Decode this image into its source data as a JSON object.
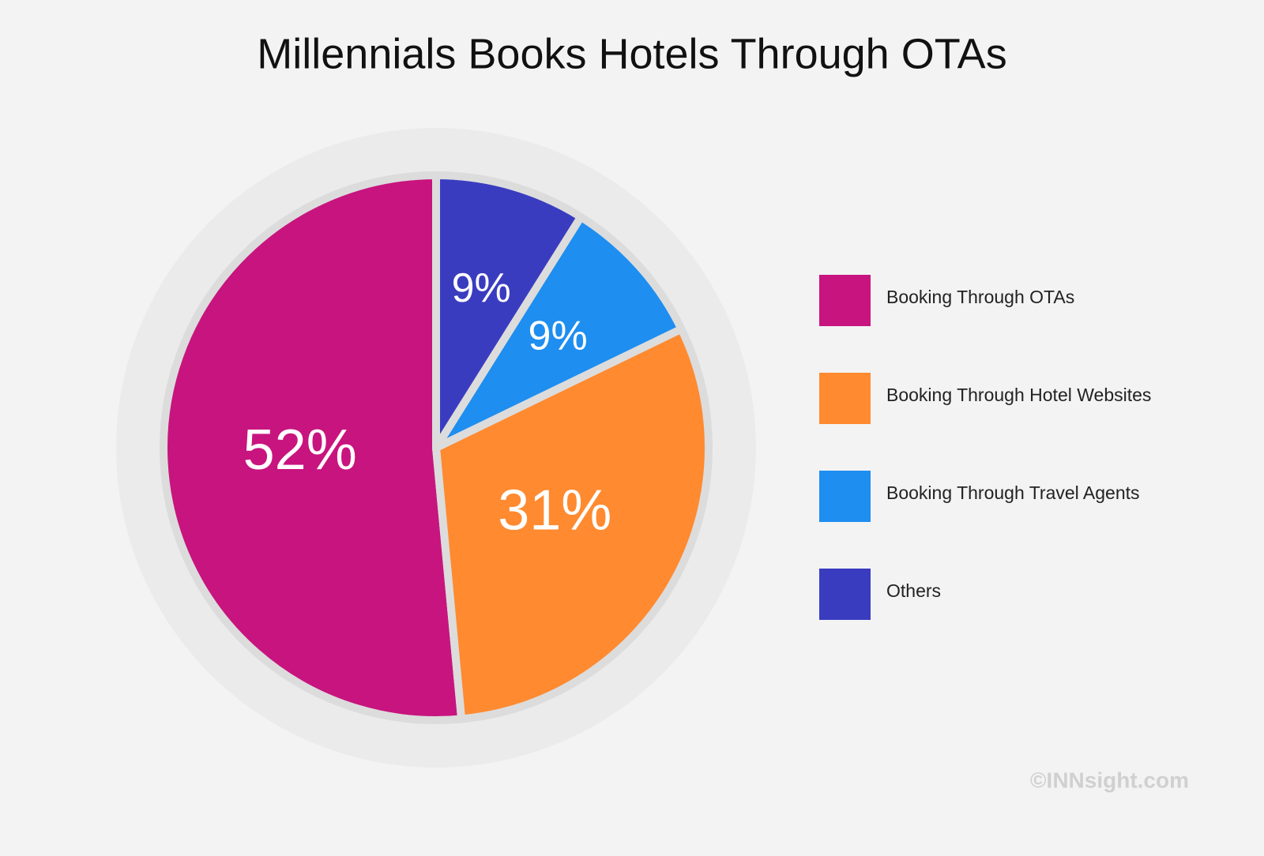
{
  "chart_data": {
    "type": "pie",
    "title": "Millennials Books Hotels Through OTAs",
    "categories": [
      "Booking Through OTAs",
      "Booking Through Hotel Websites",
      "Booking Through Travel Agents",
      "Others"
    ],
    "values": [
      52,
      31,
      9,
      9
    ],
    "value_labels": [
      "52%",
      "31%",
      "9%",
      "9%"
    ],
    "colors": [
      "#c8147e",
      "#ff8a30",
      "#1e8ef0",
      "#3a3cc0"
    ],
    "legend": "right",
    "source": "©INNsight.com"
  }
}
